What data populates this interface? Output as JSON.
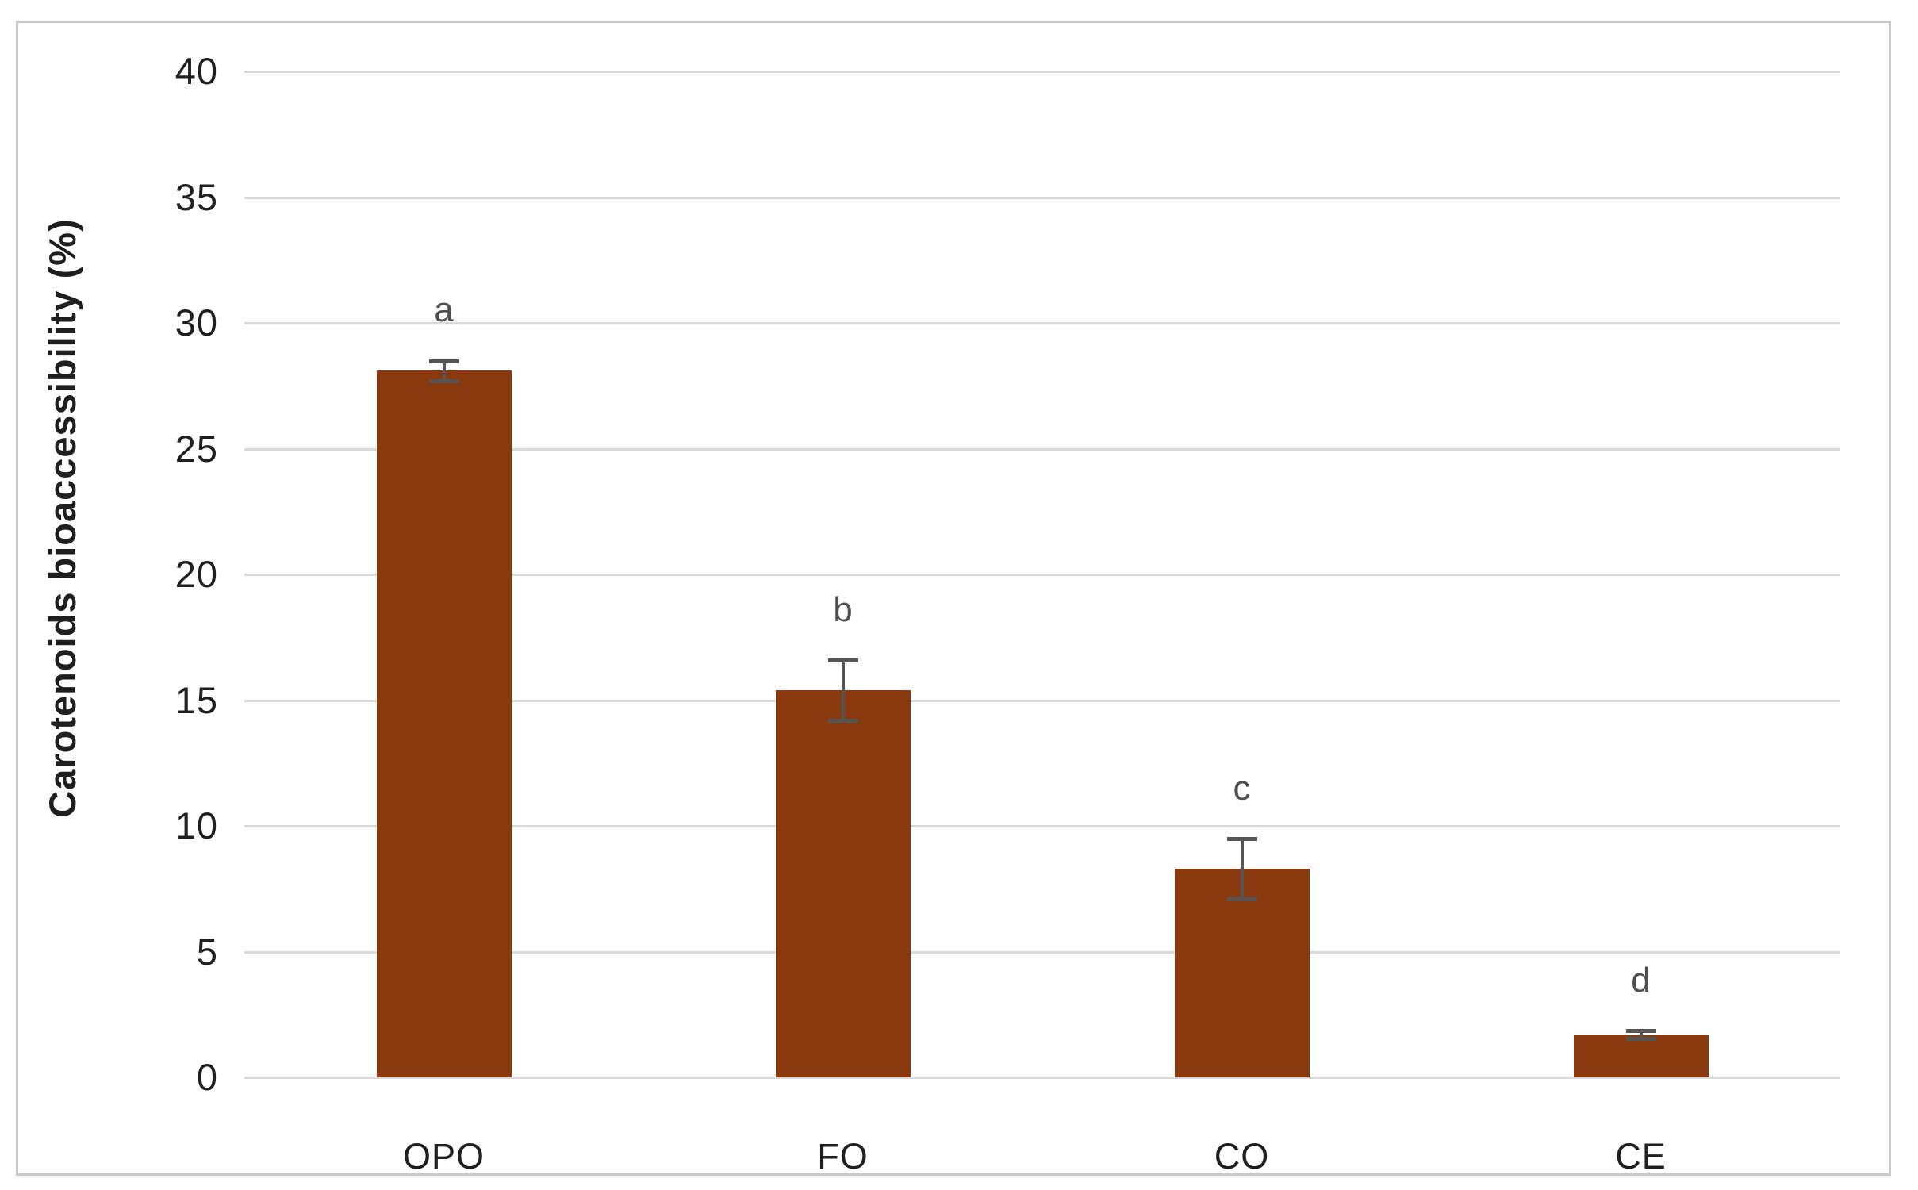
{
  "chart_data": {
    "type": "bar",
    "title": "",
    "categories": [
      "OPO",
      "FO",
      "CO",
      "CE"
    ],
    "values": [
      28.1,
      15.4,
      8.3,
      1.7
    ],
    "error_bars": [
      0.4,
      1.2,
      1.2,
      0.15
    ],
    "significance_letters": [
      "a",
      "b",
      "c",
      "d"
    ],
    "ylabel": "Carotenoids bioaccessibility (%)",
    "xlabel": "",
    "ylim": [
      0,
      40
    ],
    "yticks": [
      "0",
      "5",
      "10",
      "15",
      "20",
      "25",
      "30",
      "35",
      "40"
    ],
    "grid": true,
    "legend_position": "none",
    "colors": {
      "bar": "#8b3a10",
      "error_bar": "#555555",
      "letter": "#4f4f4f",
      "gridline": "#d9d9d9",
      "text": "#1f1f1f",
      "frame_border": "#c9c9c9",
      "background": "#ffffff"
    }
  }
}
